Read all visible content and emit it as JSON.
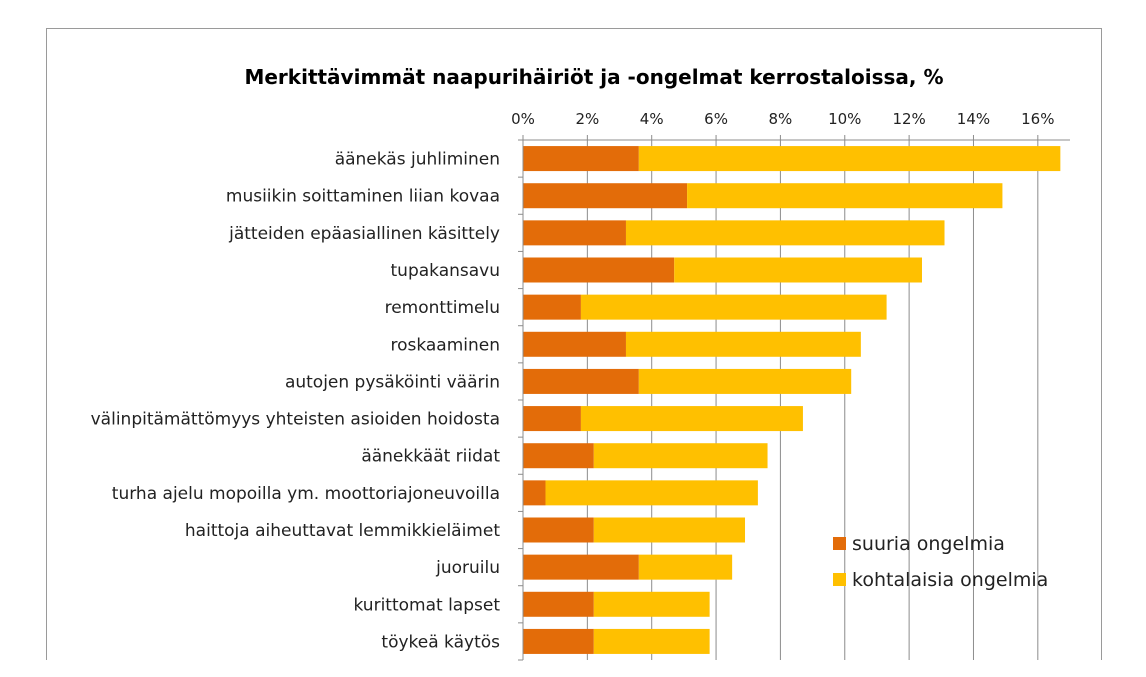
{
  "chart_data": {
    "type": "bar",
    "stacked": true,
    "orientation": "horizontal",
    "title": "Merkittävimmät naapurihäiriöt ja -ongelmat kerrostaloissa, %",
    "xlabel": "",
    "ylabel": "",
    "xlim": [
      0,
      17
    ],
    "x_ticks": [
      0,
      2,
      4,
      6,
      8,
      10,
      12,
      14,
      16
    ],
    "x_tick_labels": [
      "0%",
      "2%",
      "4%",
      "6%",
      "8%",
      "10%",
      "12%",
      "14%",
      "16%"
    ],
    "x_axis_position": "top",
    "grid": true,
    "legend_position": "bottom-right",
    "categories": [
      "äänekäs juhliminen",
      "musiikin soittaminen liian kovaa",
      "jätteiden epäasiallinen käsittely",
      "tupakansavu",
      "remonttimelu",
      "roskaaminen",
      "autojen pysäköinti väärin",
      "välinpitämättömyys yhteisten asioiden hoidosta",
      "äänekkäät riidat",
      "turha ajelu mopoilla ym. moottoriajoneuvoilla",
      "haittoja aiheuttavat lemmikkieläimet",
      "juoruilu",
      "kurittomat lapset",
      "töykeä käytös"
    ],
    "series": [
      {
        "name": "suuria ongelmia",
        "color": "#E36C09",
        "values": [
          3.6,
          5.1,
          3.2,
          4.7,
          1.8,
          3.2,
          3.6,
          1.8,
          2.2,
          0.7,
          2.2,
          3.6,
          2.2,
          2.2
        ]
      },
      {
        "name": "kohtalaisia ongelmia",
        "color": "#FFC000",
        "values": [
          13.1,
          9.8,
          9.9,
          7.7,
          9.5,
          7.3,
          6.6,
          6.9,
          5.4,
          6.6,
          4.7,
          2.9,
          3.6,
          3.6
        ]
      }
    ]
  }
}
